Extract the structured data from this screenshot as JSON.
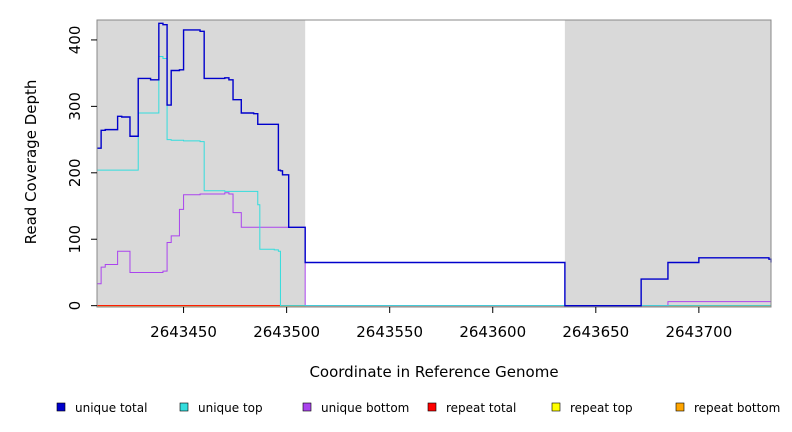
{
  "chart_data": {
    "type": "line",
    "title": "",
    "xlabel": "Coordinate in Reference Genome",
    "ylabel": "Read Coverage Depth",
    "xlim": [
      2643408,
      2643735
    ],
    "ylim": [
      -2,
      430
    ],
    "xticks": [
      {
        "value": 2643450,
        "label": "2643450"
      },
      {
        "value": 2643500,
        "label": "2643500"
      },
      {
        "value": 2643550,
        "label": "2643550"
      },
      {
        "value": 2643600,
        "label": "2643600"
      },
      {
        "value": 2643650,
        "label": "2643650"
      },
      {
        "value": 2643700,
        "label": "2643700"
      }
    ],
    "yticks": [
      {
        "value": 0,
        "label": "0"
      },
      {
        "value": 100,
        "label": "100"
      },
      {
        "value": 200,
        "label": "200"
      },
      {
        "value": 300,
        "label": "300"
      },
      {
        "value": 400,
        "label": "400"
      }
    ],
    "shaded_regions": [
      {
        "x0": 2643408,
        "x1": 2643509,
        "color": "#d9d9d9"
      },
      {
        "x0": 2643635,
        "x1": 2643735,
        "color": "#d9d9d9"
      }
    ],
    "legend_position": "bottom",
    "series": [
      {
        "name": "unique total",
        "color": "#0000cc",
        "x": [
          2643408,
          2643410,
          2643412,
          2643418,
          2643420,
          2643424,
          2643428,
          2643434,
          2643436,
          2643438,
          2643440,
          2643442,
          2643444,
          2643448,
          2643450,
          2643458,
          2643460,
          2643470,
          2643472,
          2643474,
          2643478,
          2643480,
          2643484,
          2643486,
          2643496,
          2643497,
          2643498,
          2643501,
          2643502,
          2643509,
          2643635,
          2643672,
          2643685,
          2643700,
          2643734,
          2643735
        ],
        "y": [
          237,
          264,
          265,
          285,
          284,
          255,
          342,
          340,
          340,
          425,
          423,
          302,
          354,
          355,
          415,
          413,
          342,
          343,
          340,
          310,
          290,
          290,
          289,
          273,
          204,
          203,
          197,
          118,
          118,
          65,
          0,
          40,
          65,
          72,
          70,
          65
        ]
      },
      {
        "name": "unique top",
        "color": "#33dddd",
        "x": [
          2643408,
          2643410,
          2643424,
          2643428,
          2643436,
          2643438,
          2643440,
          2643442,
          2643444,
          2643450,
          2643458,
          2643460,
          2643470,
          2643480,
          2643486,
          2643487,
          2643494,
          2643496,
          2643497,
          2643735
        ],
        "y": [
          204,
          204,
          204,
          290,
          290,
          375,
          372,
          250,
          249,
          248,
          247,
          173,
          172,
          172,
          152,
          85,
          84,
          82,
          0,
          0
        ]
      },
      {
        "name": "unique bottom",
        "color": "#aa44ee",
        "x": [
          2643408,
          2643410,
          2643412,
          2643418,
          2643420,
          2643424,
          2643438,
          2643440,
          2643442,
          2643444,
          2643448,
          2643450,
          2643458,
          2643460,
          2643470,
          2643472,
          2643474,
          2643478,
          2643497,
          2643500,
          2643509,
          2643635,
          2643685,
          2643735
        ],
        "y": [
          33,
          58,
          62,
          82,
          82,
          50,
          50,
          52,
          95,
          105,
          145,
          167,
          168,
          168,
          170,
          168,
          140,
          118,
          118,
          118,
          0,
          0,
          6,
          6
        ]
      },
      {
        "name": "repeat total",
        "color": "#ff0000",
        "x": [
          2643408,
          2643735
        ],
        "y": [
          0,
          0
        ]
      },
      {
        "name": "repeat top",
        "color": "#ffff00",
        "x": [
          2643408,
          2643735
        ],
        "y": [
          0,
          0
        ]
      },
      {
        "name": "repeat bottom",
        "color": "#ffa500",
        "x": [
          2643408,
          2643735
        ],
        "y": [
          0,
          0
        ]
      }
    ]
  }
}
